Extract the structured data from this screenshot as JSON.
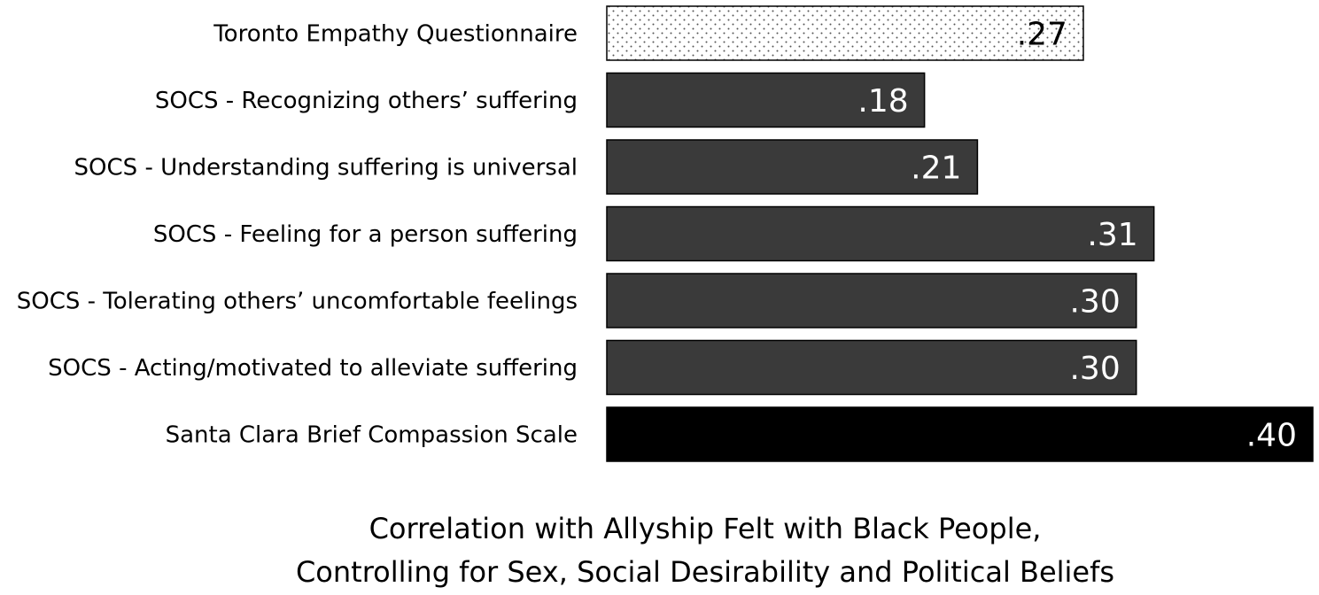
{
  "chart_data": {
    "type": "bar",
    "orientation": "horizontal",
    "title_lines": [
      "Correlation with Allyship Felt with Black People,",
      "Controlling for Sex, Social Desirability and Political Beliefs"
    ],
    "xlabel": "",
    "ylabel": "",
    "xlim": [
      0,
      0.4
    ],
    "grid": false,
    "legend": "none",
    "categories": [
      "Toronto Empathy Questionnaire",
      "SOCS - Recognizing others’ suffering",
      "SOCS - Understanding suffering is universal",
      "SOCS - Feeling for a person suffering",
      "SOCS - Tolerating others’ uncomfortable feelings",
      "SOCS - Acting/motivated to alleviate suffering",
      "Santa Clara Brief Compassion Scale"
    ],
    "values": [
      0.27,
      0.18,
      0.21,
      0.31,
      0.3,
      0.3,
      0.4
    ],
    "data_labels": [
      ".27",
      ".18",
      ".21",
      ".31",
      ".30",
      ".30",
      ".40"
    ],
    "bar_styles": [
      "dotted",
      "solid-gray",
      "solid-gray",
      "solid-gray",
      "solid-gray",
      "solid-gray",
      "solid-black"
    ],
    "colors": {
      "dotted_fill": "#ffffff",
      "dotted_dot": "#555555",
      "solid_gray": "#3a3a3a",
      "solid_black": "#000000",
      "bar_outline": "#000000",
      "label_on_dark": "#ffffff",
      "label_on_light": "#000000"
    }
  }
}
